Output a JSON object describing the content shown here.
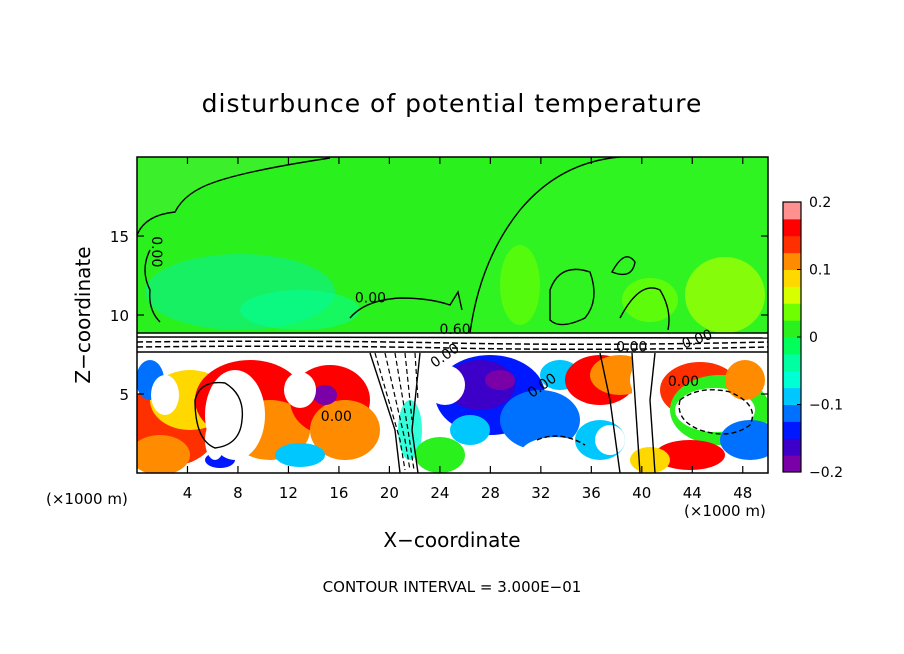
{
  "chart_data": {
    "type": "heatmap",
    "title": "disturbunce of potential temperature",
    "xlabel": "X−coordinate",
    "ylabel": "Z−coordinate",
    "x_unit_left": "(×1000 m)",
    "x_unit_right": "(×1000 m)",
    "footer": "CONTOUR INTERVAL = 3.000E−01",
    "xlim": [
      0,
      50
    ],
    "ylim": [
      0,
      20
    ],
    "x_ticks": [
      4,
      8,
      12,
      16,
      20,
      24,
      28,
      32,
      36,
      40,
      44,
      48
    ],
    "x_tick_labels": [
      "4",
      "8",
      "12",
      "16",
      "20",
      "24",
      "28",
      "32",
      "36",
      "40",
      "44",
      "48"
    ],
    "y_ticks": [
      5,
      10,
      15
    ],
    "y_tick_labels": [
      "5",
      "10",
      "15"
    ],
    "colorbar": {
      "range": [
        -0.2,
        0.2
      ],
      "ticks": [
        0.2,
        0.1,
        0,
        -0.1,
        -0.2
      ],
      "tick_labels": [
        "0.2",
        "0.1",
        "0",
        "−0.1",
        "−0.2"
      ],
      "colors": [
        "#7a00a8",
        "#3c00c8",
        "#0018ff",
        "#0070ff",
        "#00c8ff",
        "#00ffd2",
        "#00ffa0",
        "#00ff5a",
        "#2af01e",
        "#70ff00",
        "#d8ff00",
        "#ffd800",
        "#ff8c00",
        "#ff3000",
        "#ff0000",
        "#ff9090"
      ]
    },
    "contour_labels": [
      {
        "text": "0.00",
        "x": 1.2,
        "y": 14.0,
        "rotate": 90
      },
      {
        "text": "0.00",
        "x": 18.5,
        "y": 10.8
      },
      {
        "text": "0.60",
        "x": 25.2,
        "y": 8.8
      },
      {
        "text": "0.00",
        "x": 24.6,
        "y": 7.2,
        "rotate": -35
      },
      {
        "text": "0.00",
        "x": 32.3,
        "y": 5.3,
        "rotate": -35
      },
      {
        "text": "0.00",
        "x": 39.2,
        "y": 7.7
      },
      {
        "text": "0.00",
        "x": 44.5,
        "y": 8.2,
        "rotate": -20
      },
      {
        "text": "0.00",
        "x": 43.3,
        "y": 5.5
      },
      {
        "text": "0.00",
        "x": 15.8,
        "y": 3.3
      }
    ]
  }
}
